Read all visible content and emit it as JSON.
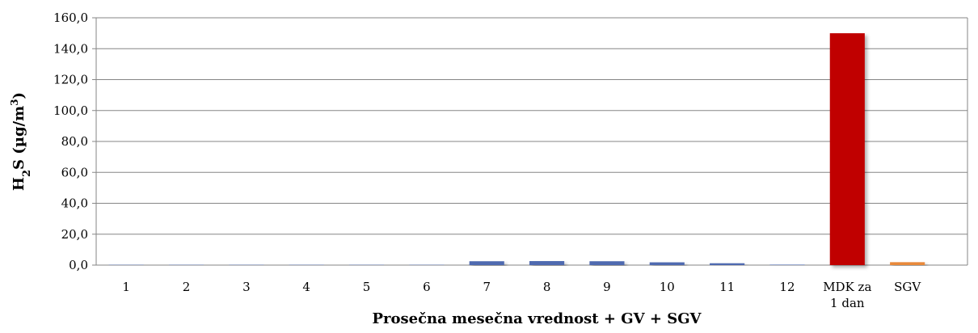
{
  "chart_data": {
    "type": "bar",
    "categories": [
      "1",
      "2",
      "3",
      "4",
      "5",
      "6",
      "7",
      "8",
      "9",
      "10",
      "11",
      "12",
      "MDK za\n1 dan",
      "SGV"
    ],
    "values": [
      0.2,
      0.2,
      0.2,
      0.2,
      0.2,
      0.2,
      2.5,
      2.6,
      2.5,
      1.8,
      1.2,
      0.3,
      150.0,
      1.9
    ],
    "bar_colors": [
      "#4f6bb0",
      "#4f6bb0",
      "#4f6bb0",
      "#4f6bb0",
      "#4f6bb0",
      "#4f6bb0",
      "#4f6bb0",
      "#4f6bb0",
      "#4f6bb0",
      "#4f6bb0",
      "#4f6bb0",
      "#4f6bb0",
      "#c00000",
      "#e8893a"
    ],
    "xlabel": "Prosečna mesečna vrednost + GV + SGV",
    "ylabel_main": "H",
    "ylabel_sub": "2",
    "ylabel_mid": "S (µg/m",
    "ylabel_sup": "3",
    "ylabel_end": ")",
    "ylim": [
      0,
      160
    ],
    "yticks": [
      0,
      20,
      40,
      60,
      80,
      100,
      120,
      140,
      160
    ],
    "ytick_labels": [
      "0,0",
      "20,0",
      "40,0",
      "60,0",
      "80,0",
      "100,0",
      "120,0",
      "140,0",
      "160,0"
    ],
    "grid": true
  }
}
